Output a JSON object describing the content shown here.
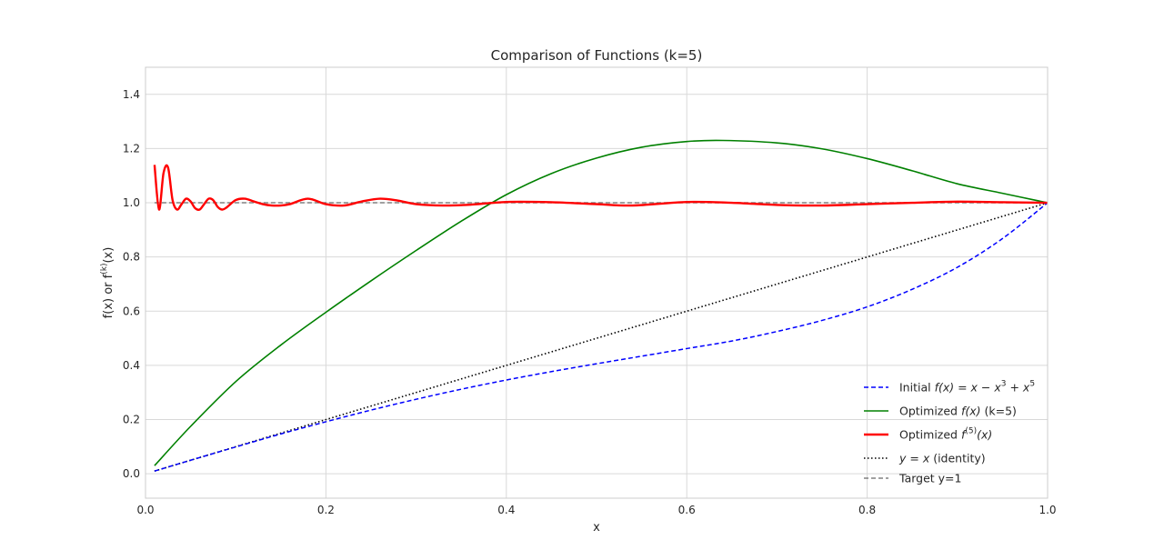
{
  "chart_data": {
    "type": "line",
    "title": "Comparison of Functions (k=5)",
    "xlabel": "x",
    "ylabel": "f(x) or f",
    "ylabel_super": "(k)",
    "ylabel_tail": "(x)",
    "xlim": [
      0.0,
      1.0
    ],
    "ylim": [
      -0.09,
      1.5
    ],
    "grid": true,
    "legend_position": "lower-right",
    "xticks": [
      "0.0",
      "0.2",
      "0.4",
      "0.6",
      "0.8",
      "1.0"
    ],
    "yticks": [
      "0.0",
      "0.2",
      "0.4",
      "0.6",
      "0.8",
      "1.0",
      "1.2",
      "1.4"
    ],
    "series": [
      {
        "name": "Initial f(x) = x − x³ + x⁵",
        "legend": {
          "pre": "Initial ",
          "f": "f",
          "arg": "(x) = x − x",
          "sup1": "3",
          "mid": " + x",
          "sup2": "5",
          "post": ""
        },
        "color": "#0000ff",
        "style": "dashed",
        "width": 1.5,
        "x": [
          0.01,
          0.05,
          0.1,
          0.15,
          0.2,
          0.25,
          0.3,
          0.35,
          0.4,
          0.45,
          0.5,
          0.55,
          0.6,
          0.65,
          0.7,
          0.75,
          0.8,
          0.85,
          0.9,
          0.95,
          1.0
        ],
        "y": [
          0.01,
          0.05,
          0.099,
          0.147,
          0.192,
          0.235,
          0.275,
          0.312,
          0.346,
          0.377,
          0.406,
          0.434,
          0.462,
          0.49,
          0.525,
          0.566,
          0.616,
          0.681,
          0.762,
          0.868,
          1.0
        ]
      },
      {
        "name": "Optimized f(x) (k=5)",
        "legend": {
          "pre": "Optimized ",
          "f": "f",
          "arg": "(x)",
          "post": " (k=5)"
        },
        "color": "#008000",
        "style": "solid",
        "width": 1.6,
        "x": [
          0.01,
          0.05,
          0.1,
          0.15,
          0.2,
          0.25,
          0.3,
          0.35,
          0.4,
          0.45,
          0.5,
          0.55,
          0.6,
          0.64,
          0.7,
          0.75,
          0.8,
          0.85,
          0.9,
          0.95,
          1.0
        ],
        "y": [
          0.03,
          0.175,
          0.34,
          0.475,
          0.596,
          0.712,
          0.824,
          0.932,
          1.03,
          1.108,
          1.165,
          1.205,
          1.226,
          1.23,
          1.221,
          1.199,
          1.163,
          1.118,
          1.07,
          1.035,
          1.0
        ]
      },
      {
        "name": "Optimized f⁽⁵⁾(x)",
        "legend": {
          "pre": "Optimized ",
          "f": "f",
          "sup": "(5)",
          "arg": "(x)",
          "post": ""
        },
        "color": "#ff0000",
        "style": "solid",
        "width": 2.4,
        "x": [
          0.01,
          0.015,
          0.02,
          0.025,
          0.03,
          0.035,
          0.04,
          0.045,
          0.05,
          0.055,
          0.06,
          0.065,
          0.07,
          0.075,
          0.08,
          0.085,
          0.09,
          0.1,
          0.11,
          0.12,
          0.13,
          0.14,
          0.15,
          0.16,
          0.18,
          0.2,
          0.22,
          0.24,
          0.26,
          0.28,
          0.3,
          0.33,
          0.36,
          0.4,
          0.45,
          0.5,
          0.54,
          0.6,
          0.65,
          0.7,
          0.75,
          0.8,
          0.85,
          0.9,
          0.95,
          1.0
        ],
        "y": [
          1.14,
          0.975,
          1.11,
          1.13,
          1.01,
          0.975,
          0.995,
          1.015,
          1.005,
          0.98,
          0.975,
          0.995,
          1.015,
          1.01,
          0.985,
          0.975,
          0.983,
          1.01,
          1.015,
          1.005,
          0.995,
          0.99,
          0.99,
          0.995,
          1.015,
          0.995,
          0.99,
          1.005,
          1.015,
          1.008,
          0.995,
          0.99,
          0.993,
          1.003,
          1.002,
          0.995,
          0.99,
          1.003,
          1.0,
          0.992,
          0.99,
          0.995,
          1.0,
          1.004,
          1.002,
          1.0
        ]
      },
      {
        "name": "y = x (identity)",
        "legend": {
          "pre": "",
          "f": "y",
          "arg": " = x",
          "post": " (identity)"
        },
        "color": "#000000",
        "style": "dotted",
        "width": 1.6,
        "x": [
          0.01,
          1.0
        ],
        "y": [
          0.01,
          1.0
        ]
      },
      {
        "name": "Target y=1",
        "legend": {
          "pre": "Target y=1",
          "f": "",
          "arg": "",
          "post": ""
        },
        "color": "#808080",
        "style": "dashed",
        "width": 1.5,
        "x": [
          0.01,
          1.0
        ],
        "y": [
          1.0,
          1.0
        ]
      }
    ]
  }
}
